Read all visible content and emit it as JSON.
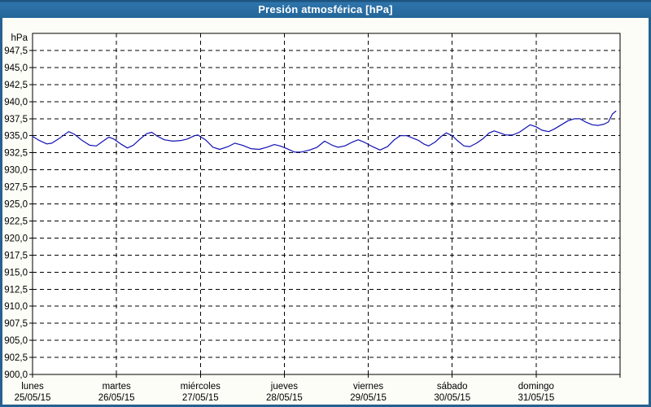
{
  "window": {
    "title": "Presión atmosférica [hPa]"
  },
  "colors": {
    "frame": "#27618f",
    "titlebar_top": "#1d5480",
    "titlebar_main": "#2e74ab",
    "background": "#fbfdf6",
    "plot_background": "#ffffff",
    "grid": "#000000",
    "axis": "#000000",
    "tick_text": "#000000",
    "title_text": "#ffffff",
    "line": "#1111b3"
  },
  "chart_data": {
    "type": "line",
    "title": "Presión atmosférica [hPa]",
    "y_unit_label": "hPa",
    "ylim": [
      900,
      950
    ],
    "y_tick_step": 2.5,
    "grid": "dashed",
    "legend": "none",
    "y_ticks": [
      {
        "value": 947.5,
        "label": "947,5"
      },
      {
        "value": 945.0,
        "label": "945,0"
      },
      {
        "value": 942.5,
        "label": "942,5"
      },
      {
        "value": 940.0,
        "label": "940,0"
      },
      {
        "value": 937.5,
        "label": "937,5"
      },
      {
        "value": 935.0,
        "label": "935,0"
      },
      {
        "value": 932.5,
        "label": "932,5"
      },
      {
        "value": 930.0,
        "label": "930,0"
      },
      {
        "value": 927.5,
        "label": "927,5"
      },
      {
        "value": 925.0,
        "label": "925,0"
      },
      {
        "value": 922.5,
        "label": "922,5"
      },
      {
        "value": 920.0,
        "label": "920,0"
      },
      {
        "value": 917.5,
        "label": "917,5"
      },
      {
        "value": 915.0,
        "label": "915,0"
      },
      {
        "value": 912.5,
        "label": "912,5"
      },
      {
        "value": 910.0,
        "label": "910,0"
      },
      {
        "value": 907.5,
        "label": "907,5"
      },
      {
        "value": 905.0,
        "label": "905,0"
      },
      {
        "value": 902.5,
        "label": "902,5"
      },
      {
        "value": 900.0,
        "label": "900,0"
      }
    ],
    "x_days": 7,
    "x_ticks": [
      {
        "day_index": 0,
        "day_name": "lunes",
        "date": "25/05/15"
      },
      {
        "day_index": 1,
        "day_name": "martes",
        "date": "26/05/15"
      },
      {
        "day_index": 2,
        "day_name": "miércoles",
        "date": "27/05/15"
      },
      {
        "day_index": 3,
        "day_name": "jueves",
        "date": "28/05/15"
      },
      {
        "day_index": 4,
        "day_name": "viernes",
        "date": "29/05/15"
      },
      {
        "day_index": 5,
        "day_name": "sábado",
        "date": "30/05/15"
      },
      {
        "day_index": 6,
        "day_name": "domingo",
        "date": "31/05/15"
      }
    ],
    "series": [
      {
        "name": "presion_atmosferica",
        "unit": "hPa",
        "color": "#1111b3",
        "points_day_hpa": [
          [
            0.0,
            934.9
          ],
          [
            0.08,
            934.3
          ],
          [
            0.17,
            933.8
          ],
          [
            0.23,
            933.9
          ],
          [
            0.33,
            934.7
          ],
          [
            0.43,
            935.6
          ],
          [
            0.5,
            935.2
          ],
          [
            0.58,
            934.4
          ],
          [
            0.68,
            933.6
          ],
          [
            0.76,
            933.5
          ],
          [
            0.84,
            934.2
          ],
          [
            0.91,
            934.8
          ],
          [
            0.97,
            934.5
          ],
          [
            1.05,
            933.8
          ],
          [
            1.13,
            933.2
          ],
          [
            1.2,
            933.6
          ],
          [
            1.28,
            934.5
          ],
          [
            1.36,
            935.3
          ],
          [
            1.42,
            935.5
          ],
          [
            1.49,
            934.9
          ],
          [
            1.57,
            934.4
          ],
          [
            1.67,
            934.2
          ],
          [
            1.77,
            934.3
          ],
          [
            1.84,
            934.5
          ],
          [
            1.93,
            935.0
          ],
          [
            1.97,
            935.1
          ],
          [
            2.06,
            934.4
          ],
          [
            2.15,
            933.3
          ],
          [
            2.23,
            933.0
          ],
          [
            2.33,
            933.4
          ],
          [
            2.41,
            933.9
          ],
          [
            2.5,
            933.6
          ],
          [
            2.6,
            933.1
          ],
          [
            2.7,
            933.0
          ],
          [
            2.79,
            933.3
          ],
          [
            2.88,
            933.7
          ],
          [
            2.95,
            933.5
          ],
          [
            3.03,
            933.1
          ],
          [
            3.12,
            932.6
          ],
          [
            3.2,
            932.6
          ],
          [
            3.3,
            932.9
          ],
          [
            3.39,
            933.3
          ],
          [
            3.48,
            934.2
          ],
          [
            3.57,
            933.6
          ],
          [
            3.64,
            933.3
          ],
          [
            3.72,
            933.5
          ],
          [
            3.8,
            934.0
          ],
          [
            3.88,
            934.4
          ],
          [
            3.96,
            934.0
          ],
          [
            4.05,
            933.4
          ],
          [
            4.14,
            932.9
          ],
          [
            4.23,
            933.4
          ],
          [
            4.31,
            934.4
          ],
          [
            4.38,
            935.0
          ],
          [
            4.46,
            935.0
          ],
          [
            4.54,
            934.6
          ],
          [
            4.6,
            934.3
          ],
          [
            4.66,
            933.8
          ],
          [
            4.72,
            933.5
          ],
          [
            4.8,
            934.1
          ],
          [
            4.87,
            934.9
          ],
          [
            4.93,
            935.4
          ],
          [
            5.0,
            935.0
          ],
          [
            5.06,
            934.3
          ],
          [
            5.14,
            933.5
          ],
          [
            5.21,
            933.4
          ],
          [
            5.29,
            933.9
          ],
          [
            5.37,
            934.6
          ],
          [
            5.44,
            935.4
          ],
          [
            5.5,
            935.7
          ],
          [
            5.57,
            935.4
          ],
          [
            5.64,
            935.1
          ],
          [
            5.72,
            935.1
          ],
          [
            5.8,
            935.5
          ],
          [
            5.87,
            936.1
          ],
          [
            5.93,
            936.6
          ],
          [
            6.0,
            936.3
          ],
          [
            6.07,
            935.8
          ],
          [
            6.15,
            935.6
          ],
          [
            6.22,
            936.0
          ],
          [
            6.3,
            936.6
          ],
          [
            6.38,
            937.2
          ],
          [
            6.46,
            937.5
          ],
          [
            6.52,
            937.5
          ],
          [
            6.59,
            937.0
          ],
          [
            6.67,
            936.6
          ],
          [
            6.74,
            936.5
          ],
          [
            6.81,
            936.7
          ],
          [
            6.86,
            937.0
          ],
          [
            6.91,
            938.2
          ],
          [
            6.95,
            938.6
          ]
        ]
      }
    ]
  }
}
